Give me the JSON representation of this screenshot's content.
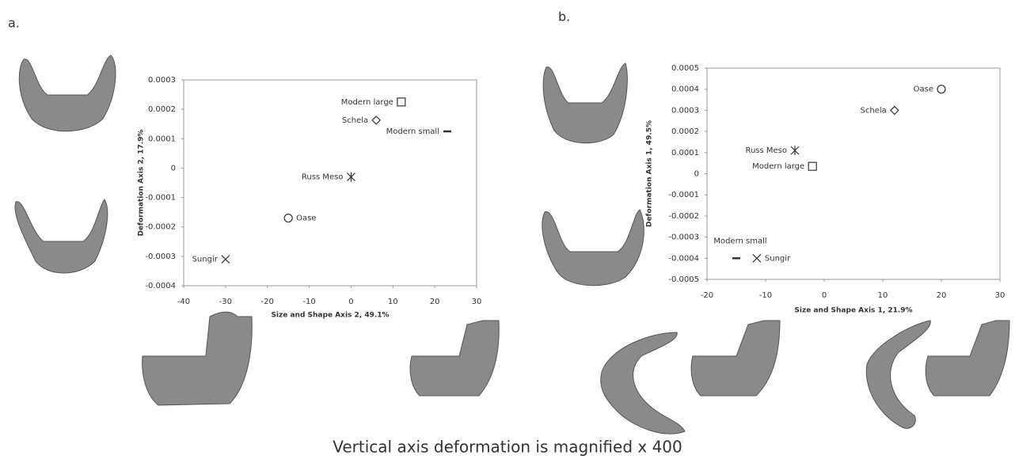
{
  "chart_data": [
    {
      "type": "scatter",
      "panel": "a.",
      "xlabel": "Size and Shape Axis 2, 49.1%",
      "ylabel": "Deformation Axis 2, 17.9%",
      "xlim": [
        -40,
        30
      ],
      "xticks": [
        -40,
        -30,
        -20,
        -10,
        0,
        10,
        20,
        30
      ],
      "ylim": [
        -0.0004,
        0.0003
      ],
      "yticks": [
        -0.0004,
        -0.0003,
        -0.0002,
        -0.0001,
        0,
        0.0001,
        0.0002,
        0.0003
      ],
      "series": [
        {
          "name": "Modern large",
          "marker": "square",
          "x": [
            12
          ],
          "values": [
            0.000225
          ]
        },
        {
          "name": "Schela",
          "marker": "diamond",
          "x": [
            6
          ],
          "values": [
            0.000163
          ]
        },
        {
          "name": "Modern small",
          "marker": "dash",
          "x": [
            23
          ],
          "values": [
            0.000125
          ]
        },
        {
          "name": "Russ Meso",
          "marker": "asterisk",
          "x": [
            0
          ],
          "values": [
            -3e-05
          ]
        },
        {
          "name": "Oase",
          "marker": "circle",
          "x": [
            -15
          ],
          "values": [
            -0.00017
          ]
        },
        {
          "name": "Sungir",
          "marker": "cross",
          "x": [
            -30
          ],
          "values": [
            -0.00031
          ]
        }
      ]
    },
    {
      "type": "scatter",
      "panel": "b.",
      "xlabel": "Size and Shape Axis 1, 21.9%",
      "ylabel": "Deformation Axis 1, 49.5%",
      "xlim": [
        -20,
        30
      ],
      "xticks": [
        -20,
        -10,
        0,
        10,
        20,
        30
      ],
      "ylim": [
        -0.0005,
        0.0005
      ],
      "yticks": [
        -0.0005,
        -0.0004,
        -0.0003,
        -0.0002,
        -0.0001,
        0,
        0.0001,
        0.0002,
        0.0003,
        0.0004,
        0.0005
      ],
      "series": [
        {
          "name": "Oase",
          "marker": "circle",
          "x": [
            20
          ],
          "values": [
            0.0004
          ]
        },
        {
          "name": "Schela",
          "marker": "diamond",
          "x": [
            12
          ],
          "values": [
            0.0003
          ]
        },
        {
          "name": "Russ Meso",
          "marker": "asterisk",
          "x": [
            -5
          ],
          "values": [
            0.00011
          ]
        },
        {
          "name": "Modern large",
          "marker": "square",
          "x": [
            -2
          ],
          "values": [
            3.5e-05
          ]
        },
        {
          "name": "Modern small",
          "marker": "dash",
          "x": [
            -15
          ],
          "values": [
            -0.0004
          ]
        },
        {
          "name": "Sungir",
          "marker": "cross",
          "x": [
            -11.5
          ],
          "values": [
            -0.0004
          ]
        }
      ]
    }
  ],
  "caption": "Vertical axis deformation is magnified x 400"
}
